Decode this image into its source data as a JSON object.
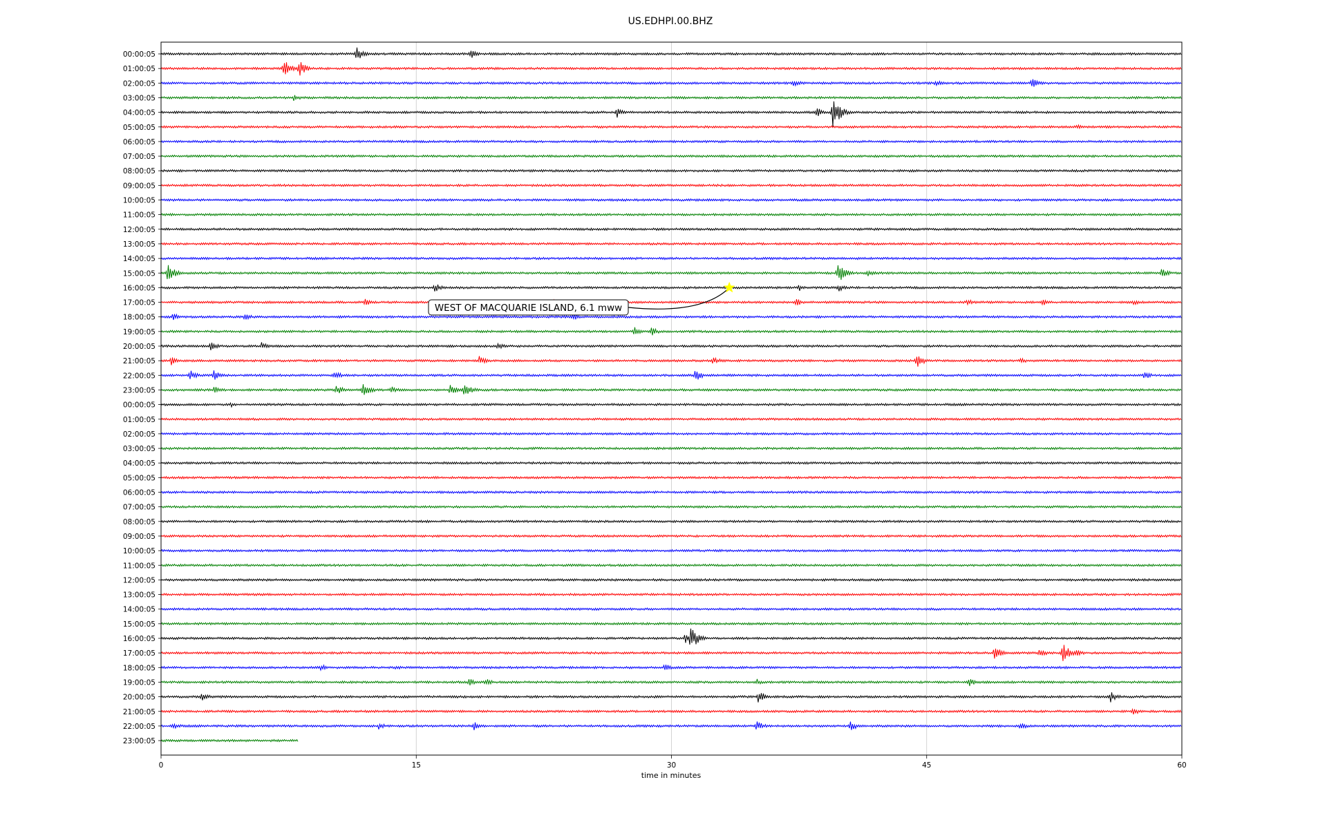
{
  "chart_data": {
    "type": "line",
    "title": "US.EDHPI.00.BHZ",
    "xlabel": "time in minutes",
    "ylabel": "",
    "xlim": [
      0,
      60
    ],
    "xticks": [
      "0",
      "15",
      "30",
      "45",
      "60"
    ],
    "grid": "vertical",
    "trace_colors": [
      "#000000",
      "#ff0000",
      "#0000ff",
      "#008000"
    ],
    "rows": [
      "00:00:05",
      "01:00:05",
      "02:00:05",
      "03:00:05",
      "04:00:05",
      "05:00:05",
      "06:00:05",
      "07:00:05",
      "08:00:05",
      "09:00:05",
      "10:00:05",
      "11:00:05",
      "12:00:05",
      "13:00:05",
      "14:00:05",
      "15:00:05",
      "16:00:05",
      "17:00:05",
      "18:00:05",
      "19:00:05",
      "20:00:05",
      "21:00:05",
      "22:00:05",
      "23:00:05",
      "00:00:05",
      "01:00:05",
      "02:00:05",
      "03:00:05",
      "04:00:05",
      "05:00:05",
      "06:00:05",
      "07:00:05",
      "08:00:05",
      "09:00:05",
      "10:00:05",
      "11:00:05",
      "12:00:05",
      "13:00:05",
      "14:00:05",
      "15:00:05",
      "16:00:05",
      "17:00:05",
      "18:00:05",
      "19:00:05",
      "20:00:05",
      "21:00:05",
      "22:00:05",
      "23:00:05"
    ],
    "last_row_end_minute": 8.1,
    "events": [
      {
        "row": 0,
        "minute": 11.5,
        "amp": 12
      },
      {
        "row": 0,
        "minute": 18.2,
        "amp": 7
      },
      {
        "row": 1,
        "minute": 7.2,
        "amp": 14
      },
      {
        "row": 1,
        "minute": 8.1,
        "amp": 13
      },
      {
        "row": 2,
        "minute": 37.2,
        "amp": 6
      },
      {
        "row": 2,
        "minute": 45.5,
        "amp": 5
      },
      {
        "row": 2,
        "minute": 51.2,
        "amp": 9
      },
      {
        "row": 3,
        "minute": 7.8,
        "amp": 5
      },
      {
        "row": 4,
        "minute": 26.8,
        "amp": 8
      },
      {
        "row": 4,
        "minute": 38.5,
        "amp": 8
      },
      {
        "row": 4,
        "minute": 39.5,
        "amp": 26
      },
      {
        "row": 5,
        "minute": 53.8,
        "amp": 4
      },
      {
        "row": 15,
        "minute": 0.4,
        "amp": 14
      },
      {
        "row": 15,
        "minute": 39.8,
        "amp": 16
      },
      {
        "row": 15,
        "minute": 41.5,
        "amp": 6
      },
      {
        "row": 15,
        "minute": 58.8,
        "amp": 8
      },
      {
        "row": 16,
        "minute": 16.1,
        "amp": 7
      },
      {
        "row": 16,
        "minute": 37.5,
        "amp": 5
      },
      {
        "row": 16,
        "minute": 39.8,
        "amp": 6
      },
      {
        "row": 17,
        "minute": 12.0,
        "amp": 6
      },
      {
        "row": 17,
        "minute": 23.0,
        "amp": 6
      },
      {
        "row": 17,
        "minute": 37.3,
        "amp": 7
      },
      {
        "row": 17,
        "minute": 47.4,
        "amp": 5
      },
      {
        "row": 17,
        "minute": 51.8,
        "amp": 6
      },
      {
        "row": 17,
        "minute": 57.1,
        "amp": 5
      },
      {
        "row": 18,
        "minute": 0.7,
        "amp": 6
      },
      {
        "row": 18,
        "minute": 4.9,
        "amp": 6
      },
      {
        "row": 18,
        "minute": 24.2,
        "amp": 6
      },
      {
        "row": 19,
        "minute": 27.8,
        "amp": 7
      },
      {
        "row": 19,
        "minute": 28.8,
        "amp": 7
      },
      {
        "row": 20,
        "minute": 2.9,
        "amp": 7
      },
      {
        "row": 20,
        "minute": 5.9,
        "amp": 6
      },
      {
        "row": 20,
        "minute": 19.8,
        "amp": 6
      },
      {
        "row": 21,
        "minute": 0.6,
        "amp": 8
      },
      {
        "row": 21,
        "minute": 18.7,
        "amp": 7
      },
      {
        "row": 21,
        "minute": 32.4,
        "amp": 7
      },
      {
        "row": 21,
        "minute": 44.4,
        "amp": 11
      },
      {
        "row": 21,
        "minute": 50.5,
        "amp": 5
      },
      {
        "row": 22,
        "minute": 1.7,
        "amp": 8
      },
      {
        "row": 22,
        "minute": 3.1,
        "amp": 8
      },
      {
        "row": 22,
        "minute": 10.2,
        "amp": 7
      },
      {
        "row": 22,
        "minute": 31.4,
        "amp": 10
      },
      {
        "row": 22,
        "minute": 57.8,
        "amp": 6
      },
      {
        "row": 23,
        "minute": 3.1,
        "amp": 6
      },
      {
        "row": 23,
        "minute": 10.3,
        "amp": 8
      },
      {
        "row": 23,
        "minute": 11.9,
        "amp": 13
      },
      {
        "row": 23,
        "minute": 13.5,
        "amp": 6
      },
      {
        "row": 23,
        "minute": 17.0,
        "amp": 9
      },
      {
        "row": 23,
        "minute": 17.8,
        "amp": 13
      },
      {
        "row": 24,
        "minute": 4.1,
        "amp": 4
      },
      {
        "row": 40,
        "minute": 31.1,
        "amp": 20
      },
      {
        "row": 40,
        "minute": 30.8,
        "amp": 8
      },
      {
        "row": 41,
        "minute": 49.0,
        "amp": 11
      },
      {
        "row": 41,
        "minute": 51.6,
        "amp": 7
      },
      {
        "row": 41,
        "minute": 53.0,
        "amp": 15
      },
      {
        "row": 41,
        "minute": 53.8,
        "amp": 6
      },
      {
        "row": 42,
        "minute": 9.4,
        "amp": 5
      },
      {
        "row": 42,
        "minute": 13.8,
        "amp": 5
      },
      {
        "row": 42,
        "minute": 29.6,
        "amp": 6
      },
      {
        "row": 43,
        "minute": 18.1,
        "amp": 6
      },
      {
        "row": 43,
        "minute": 19.1,
        "amp": 7
      },
      {
        "row": 43,
        "minute": 35.0,
        "amp": 5
      },
      {
        "row": 43,
        "minute": 47.5,
        "amp": 7
      },
      {
        "row": 44,
        "minute": 2.4,
        "amp": 7
      },
      {
        "row": 44,
        "minute": 35.1,
        "amp": 10
      },
      {
        "row": 44,
        "minute": 55.8,
        "amp": 9
      },
      {
        "row": 45,
        "minute": 57.1,
        "amp": 6
      },
      {
        "row": 46,
        "minute": 0.7,
        "amp": 6
      },
      {
        "row": 46,
        "minute": 12.8,
        "amp": 6
      },
      {
        "row": 46,
        "minute": 18.4,
        "amp": 7
      },
      {
        "row": 46,
        "minute": 35.0,
        "amp": 8
      },
      {
        "row": 46,
        "minute": 40.5,
        "amp": 8
      },
      {
        "row": 46,
        "minute": 50.5,
        "amp": 6
      }
    ],
    "annotation": {
      "text": "WEST OF MACQUARIE ISLAND, 6.1 mww",
      "event_row": 16,
      "event_minute": 33.4,
      "marker": "star",
      "marker_color": "#ffff00"
    }
  }
}
